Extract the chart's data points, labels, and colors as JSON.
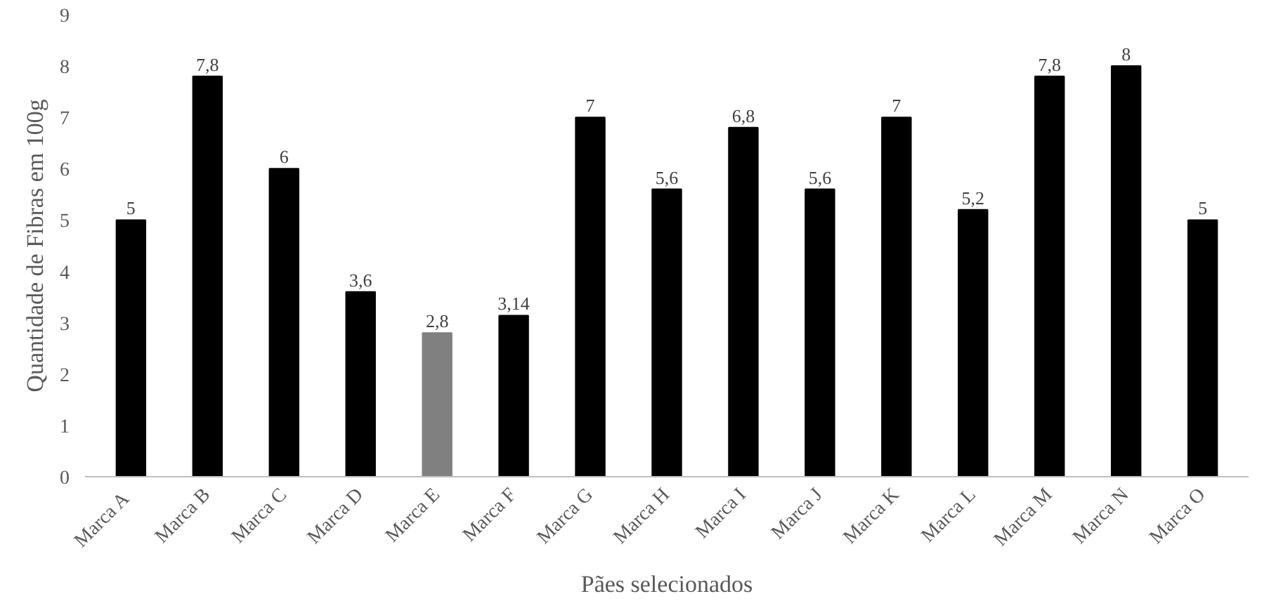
{
  "chart_data": {
    "type": "bar",
    "xlabel": "Pães selecionados",
    "ylabel": "Quantidade de Fibras em 100g",
    "categories": [
      "Marca  A",
      "Marca B",
      "Marca C",
      "Marca D",
      "Marca E",
      "Marca F",
      "Marca G",
      "Marca H",
      "Marca I",
      "Marca J",
      "Marca K",
      "Marca L",
      "Marca M",
      "Marca N",
      "Marca O"
    ],
    "values": [
      5,
      7.8,
      6,
      3.6,
      2.8,
      3.14,
      7,
      5.6,
      6.8,
      5.6,
      7,
      5.2,
      7.8,
      8,
      5
    ],
    "value_labels": [
      "5",
      "7,8",
      "6",
      "3,6",
      "2,8",
      "3,14",
      "7",
      "5,6",
      "6,8",
      "5,6",
      "7",
      "5,2",
      "7,8",
      "8",
      "5"
    ],
    "colors": [
      "#000000",
      "#000000",
      "#000000",
      "#000000",
      "#808080",
      "#000000",
      "#000000",
      "#000000",
      "#000000",
      "#000000",
      "#000000",
      "#000000",
      "#000000",
      "#000000",
      "#000000"
    ],
    "ylim": [
      0,
      9
    ],
    "yticks": [
      0,
      1,
      2,
      3,
      4,
      5,
      6,
      7,
      8,
      9
    ],
    "grid": false
  }
}
